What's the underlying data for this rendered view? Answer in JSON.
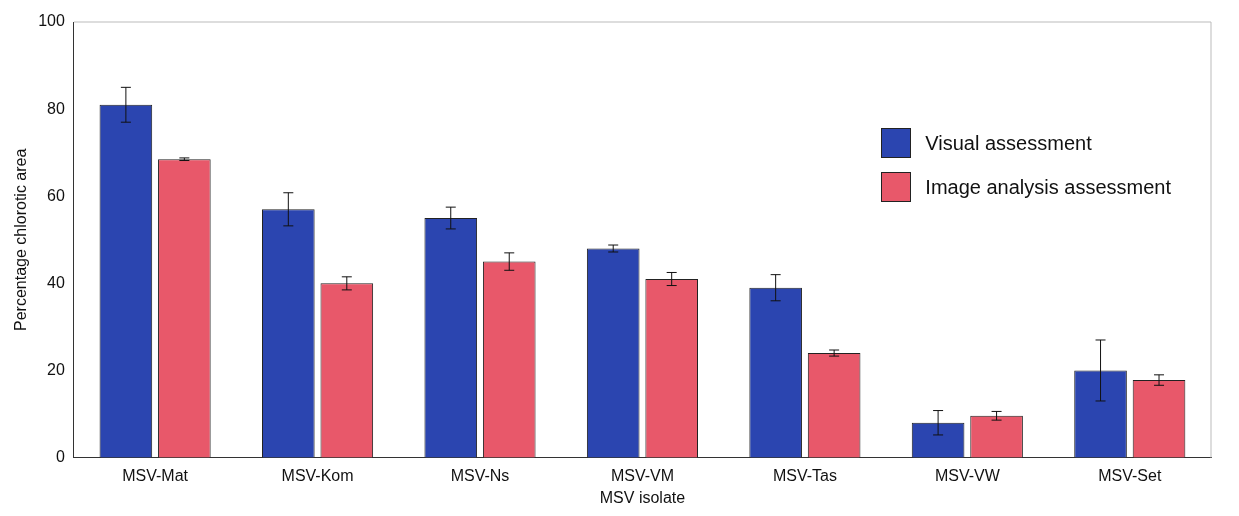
{
  "chart_data": {
    "type": "bar",
    "xlabel": "MSV isolate",
    "ylabel": "Percentage chlorotic area",
    "categories": [
      "MSV-Mat",
      "MSV-Kom",
      "MSV-Ns",
      "MSV-VM",
      "MSV-Tas",
      "MSV-VW",
      "MSV-Set"
    ],
    "series": [
      {
        "name": "Visual assessment",
        "color": "#2b45b0",
        "values": [
          81,
          57,
          55,
          48,
          39,
          8,
          20
        ],
        "errors": [
          4,
          3.8,
          2.5,
          0.8,
          3,
          2.8,
          7
        ]
      },
      {
        "name": "Image analysis assessment",
        "color": "#e8586a",
        "values": [
          68.5,
          40,
          45,
          41,
          24,
          9.6,
          17.8
        ],
        "errors": [
          0.3,
          1.5,
          2,
          1.5,
          0.7,
          1,
          1.2
        ]
      }
    ],
    "ylim": [
      0,
      100
    ],
    "yticks": [
      0,
      20,
      40,
      60,
      80,
      100
    ],
    "grid": false,
    "legend": "top right"
  }
}
